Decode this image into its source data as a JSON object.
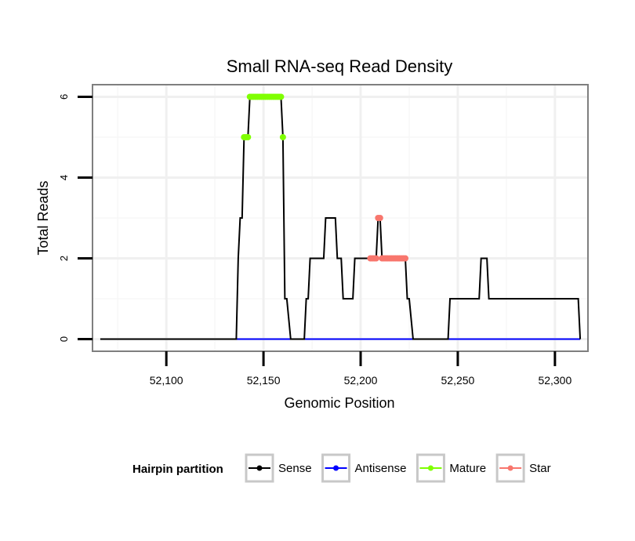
{
  "chart_data": {
    "type": "line",
    "title": "Small RNA-seq Read Density",
    "xlabel": "Genomic Position",
    "ylabel": "Total Reads",
    "xlim": [
      52062,
      52317
    ],
    "ylim": [
      -0.3,
      6.3
    ],
    "x_ticks": [
      52100,
      52150,
      52200,
      52250,
      52300
    ],
    "x_tick_labels": [
      "52,100",
      "52,150",
      "52,200",
      "52,250",
      "52,300"
    ],
    "y_ticks": [
      0,
      2,
      4,
      6
    ],
    "y_tick_labels": [
      "0",
      "2",
      "4",
      "6"
    ],
    "grid": true,
    "legend_position": "bottom",
    "legend_title": "Hairpin partition",
    "series": [
      {
        "name": "Sense",
        "color": "#000000",
        "style": "line",
        "points": [
          [
            52066,
            0
          ],
          [
            52136,
            0
          ],
          [
            52137,
            2
          ],
          [
            52138,
            3
          ],
          [
            52139,
            3
          ],
          [
            52140,
            5
          ],
          [
            52142,
            5
          ],
          [
            52143,
            6
          ],
          [
            52159,
            6
          ],
          [
            52160,
            5
          ],
          [
            52161,
            1
          ],
          [
            52162,
            1
          ],
          [
            52164,
            0
          ],
          [
            52171,
            0
          ],
          [
            52172,
            1
          ],
          [
            52173,
            1
          ],
          [
            52174,
            2
          ],
          [
            52181,
            2
          ],
          [
            52182,
            3
          ],
          [
            52187,
            3
          ],
          [
            52188,
            2
          ],
          [
            52190,
            2
          ],
          [
            52191,
            1
          ],
          [
            52196,
            1
          ],
          [
            52197,
            2
          ],
          [
            52208,
            2
          ],
          [
            52209,
            3
          ],
          [
            52210,
            3
          ],
          [
            52211,
            2
          ],
          [
            52223,
            2
          ],
          [
            52224,
            1
          ],
          [
            52225,
            1
          ],
          [
            52227,
            0
          ],
          [
            52245,
            0
          ],
          [
            52246,
            1
          ],
          [
            52261,
            1
          ],
          [
            52262,
            2
          ],
          [
            52265,
            2
          ],
          [
            52266,
            1
          ],
          [
            52312,
            1
          ],
          [
            52313,
            0
          ]
        ]
      },
      {
        "name": "Antisense",
        "color": "#0000ff",
        "style": "line",
        "points": [
          [
            52136,
            0
          ],
          [
            52313,
            0
          ]
        ]
      },
      {
        "name": "Mature",
        "color": "#7fff00",
        "style": "dots",
        "points": [
          [
            52140,
            5
          ],
          [
            52141,
            5
          ],
          [
            52142,
            5
          ],
          [
            52143,
            6
          ],
          [
            52144,
            6
          ],
          [
            52145,
            6
          ],
          [
            52146,
            6
          ],
          [
            52147,
            6
          ],
          [
            52148,
            6
          ],
          [
            52149,
            6
          ],
          [
            52150,
            6
          ],
          [
            52151,
            6
          ],
          [
            52152,
            6
          ],
          [
            52153,
            6
          ],
          [
            52154,
            6
          ],
          [
            52155,
            6
          ],
          [
            52156,
            6
          ],
          [
            52157,
            6
          ],
          [
            52158,
            6
          ],
          [
            52159,
            6
          ],
          [
            52160,
            5
          ]
        ]
      },
      {
        "name": "Star",
        "color": "#f8766d",
        "style": "dots",
        "points": [
          [
            52205,
            2
          ],
          [
            52206,
            2
          ],
          [
            52207,
            2
          ],
          [
            52208,
            2
          ],
          [
            52209,
            3
          ],
          [
            52210,
            3
          ],
          [
            52211,
            2
          ],
          [
            52212,
            2
          ],
          [
            52213,
            2
          ],
          [
            52214,
            2
          ],
          [
            52215,
            2
          ],
          [
            52216,
            2
          ],
          [
            52217,
            2
          ],
          [
            52218,
            2
          ],
          [
            52219,
            2
          ],
          [
            52220,
            2
          ],
          [
            52221,
            2
          ],
          [
            52222,
            2
          ],
          [
            52223,
            2
          ]
        ]
      }
    ]
  }
}
